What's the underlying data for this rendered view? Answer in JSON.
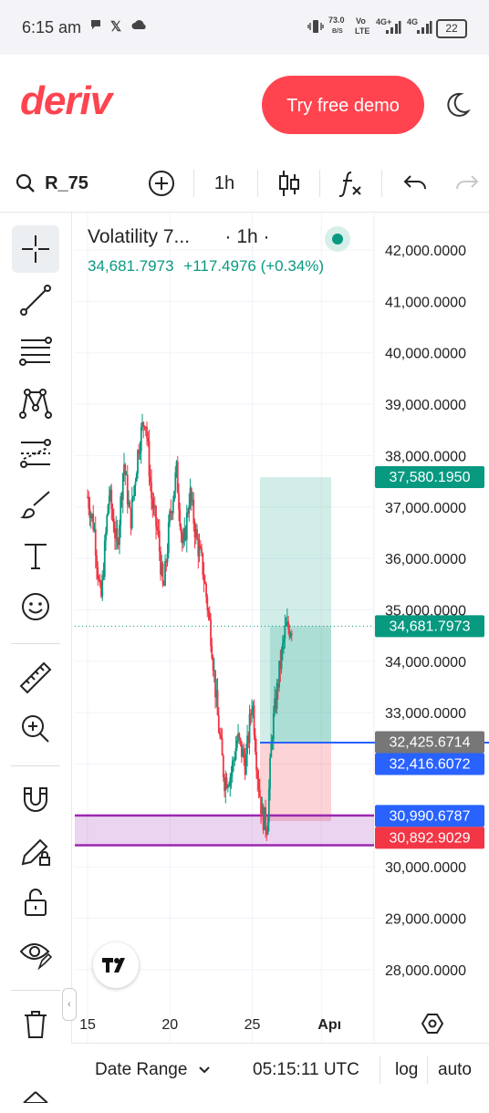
{
  "status_bar": {
    "time": "6:15 am",
    "net_speed_value": "73.0",
    "net_speed_unit": "B/S",
    "volte_top": "Vo",
    "volte_bottom": "LTE",
    "net1": "4G+",
    "net2": "4G",
    "battery": "22"
  },
  "header": {
    "logo": "deriv",
    "demo_button": "Try free demo",
    "theme_icon": "moon-icon"
  },
  "toolbar": {
    "symbol": "R_75",
    "interval": "1h"
  },
  "left_tools": [
    "crosshair-icon",
    "trend-line-icon",
    "fib-lines-icon",
    "pattern-icon",
    "prediction-icon",
    "brush-icon",
    "text-icon",
    "emoji-icon",
    "ruler-icon",
    "zoom-in-icon",
    "magnet-icon",
    "pencil-lock-icon",
    "unlock-icon",
    "eye-icon",
    "trash-icon"
  ],
  "legend": {
    "title": "Volatility 7...",
    "interval": "· 1h ·",
    "last": "34,681.7973",
    "change": "+117.4976 (+0.34%)"
  },
  "chart_data": {
    "type": "candlestick",
    "symbol": "Volatility 7...",
    "interval": "1h",
    "y_ticks": [
      "42,000.0000",
      "41,000.0000",
      "40,000.0000",
      "39,000.0000",
      "38,000.0000",
      "37,000.0000",
      "36,000.0000",
      "35,000.0000",
      "34,000.0000",
      "33,000.0000",
      "32,000.0000",
      "31,000.0000",
      "30,000.0000",
      "29,000.0000",
      "28,000.0000"
    ],
    "x_ticks": [
      "15",
      "20",
      "25",
      "Apı"
    ],
    "ylim": [
      27500,
      42500
    ],
    "price_path": [
      [
        15,
        37200
      ],
      [
        15.4,
        36600
      ],
      [
        15.8,
        35100
      ],
      [
        16.3,
        37300
      ],
      [
        16.8,
        36200
      ],
      [
        17.2,
        37900
      ],
      [
        17.6,
        36700
      ],
      [
        18.1,
        38200
      ],
      [
        18.5,
        38800
      ],
      [
        18.9,
        37100
      ],
      [
        19.3,
        36400
      ],
      [
        19.6,
        35300
      ],
      [
        20,
        36800
      ],
      [
        20.4,
        37700
      ],
      [
        20.8,
        36100
      ],
      [
        21.2,
        37300
      ],
      [
        21.6,
        36400
      ],
      [
        22,
        35800
      ],
      [
        22.5,
        34500
      ],
      [
        22.9,
        32900
      ],
      [
        23.3,
        31700
      ],
      [
        23.7,
        31800
      ],
      [
        24.1,
        32500
      ],
      [
        24.6,
        32000
      ],
      [
        25,
        33300
      ],
      [
        25.3,
        31900
      ],
      [
        25.6,
        31000
      ],
      [
        25.9,
        30800
      ],
      [
        26.2,
        32600
      ],
      [
        26.6,
        33700
      ],
      [
        27,
        34600
      ],
      [
        27.4,
        34682
      ]
    ],
    "last_price": "34,681.7973",
    "price_labels": [
      {
        "value": 37580.195,
        "text": "37,580.1950",
        "color": "#089981"
      },
      {
        "value": 34681.7973,
        "text": "34,681.7973",
        "color": "#089981"
      },
      {
        "value": 32425.6714,
        "text": "32,425.6714",
        "color": "#777777"
      },
      {
        "value": 32416.6072,
        "text": "32,416.6072",
        "color": "#2962ff"
      },
      {
        "value": 30990.6787,
        "text": "30,990.6787",
        "color": "#2962ff"
      },
      {
        "value": 30892.9029,
        "text": "30,892.9029",
        "color": "#f23645"
      }
    ],
    "long_position": {
      "entry": 32416.6072,
      "target": 37580.195,
      "stop": 30892.9029
    },
    "zone": {
      "top": 31000,
      "bottom": 30420,
      "color": "#9c27b0"
    },
    "grid": true
  },
  "bottom_bar": {
    "date_range": "Date Range",
    "clock": "05:15:11 UTC",
    "log": "log",
    "auto": "auto"
  }
}
